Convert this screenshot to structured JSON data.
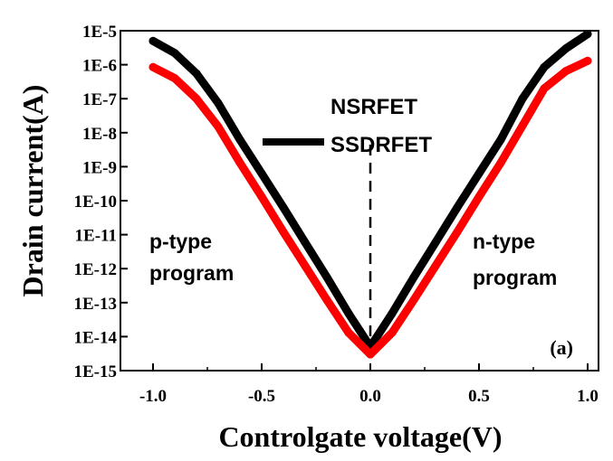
{
  "chart_data": {
    "type": "line",
    "xlabel": "Controlgate voltage(V)",
    "ylabel": "Drain current(A)",
    "xlim": [
      -1.15,
      1.05
    ],
    "ylim_log10": [
      -15,
      -5
    ],
    "y_scale": "log",
    "xticks": [
      {
        "value": -1.0,
        "label": "-1.0"
      },
      {
        "value": -0.5,
        "label": "-0.5"
      },
      {
        "value": 0.0,
        "label": "0.0"
      },
      {
        "value": 0.5,
        "label": "0.5"
      },
      {
        "value": 1.0,
        "label": "1.0"
      }
    ],
    "yticks": [
      {
        "value": 1e-05,
        "label": "1E-5"
      },
      {
        "value": 1e-06,
        "label": "1E-6"
      },
      {
        "value": 1e-07,
        "label": "1E-7"
      },
      {
        "value": 1e-08,
        "label": "1E-8"
      },
      {
        "value": 1e-09,
        "label": "1E-9"
      },
      {
        "value": 1e-10,
        "label": "1E-10"
      },
      {
        "value": 1e-11,
        "label": "1E-11"
      },
      {
        "value": 1e-12,
        "label": "1E-12"
      },
      {
        "value": 1e-13,
        "label": "1E-13"
      },
      {
        "value": 1e-14,
        "label": "1E-14"
      },
      {
        "value": 1e-15,
        "label": "1E-15"
      }
    ],
    "series": [
      {
        "name": "NSRFET",
        "color": "#000000",
        "x": [
          -1.0,
          -0.9,
          -0.8,
          -0.7,
          -0.6,
          -0.5,
          -0.4,
          -0.3,
          -0.2,
          -0.1,
          0.0,
          0.1,
          0.2,
          0.3,
          0.4,
          0.5,
          0.6,
          0.7,
          0.8,
          0.9,
          1.0
        ],
        "y": [
          5e-06,
          2.2e-06,
          5.5e-07,
          7.4e-08,
          6.2e-09,
          6.3e-10,
          6.3e-11,
          5.9e-12,
          5.6e-13,
          4.8e-14,
          5e-15,
          4.8e-14,
          5.6e-13,
          5.9e-12,
          6.3e-11,
          6.3e-10,
          6.2e-09,
          1e-07,
          8.5e-07,
          3e-06,
          8e-06
        ]
      },
      {
        "name": "SSDRFET",
        "color": "#ff0000",
        "x": [
          -1.0,
          -0.9,
          -0.8,
          -0.7,
          -0.6,
          -0.5,
          -0.4,
          -0.3,
          -0.2,
          -0.1,
          0.0,
          0.1,
          0.2,
          0.3,
          0.4,
          0.5,
          0.6,
          0.7,
          0.8,
          0.9,
          1.0
        ],
        "y": [
          8.5e-07,
          4e-07,
          1e-07,
          1.5e-08,
          1.3e-09,
          1.3e-10,
          1.2e-11,
          1.2e-12,
          1.2e-13,
          1.3e-14,
          3e-15,
          1.3e-14,
          1.2e-13,
          1.2e-12,
          1.2e-11,
          1.3e-10,
          1.3e-09,
          1.6e-08,
          2e-07,
          6.5e-07,
          1.3e-06
        ]
      }
    ],
    "legend": {
      "placement": "top-center",
      "entries": [
        "NSRFET",
        "SSDRFET"
      ]
    },
    "vline": {
      "x": 0.0,
      "style": "dashed"
    },
    "annotations": {
      "left_line1": "p-type",
      "left_line2": "program",
      "right_line1": "n-type",
      "right_line2": "program",
      "panel": "(a)"
    }
  }
}
